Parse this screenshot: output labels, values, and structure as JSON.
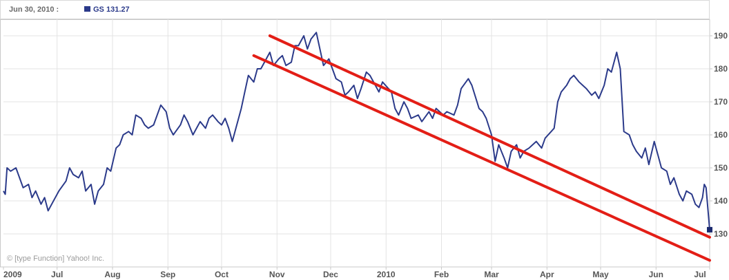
{
  "header": {
    "date_label": "Jun 30, 2010 :",
    "ticker": "GS",
    "last_value": "131.27"
  },
  "copyright": "© [type Function] Yahoo! Inc.",
  "chart_data": {
    "type": "line",
    "title": "",
    "xlabel": "",
    "ylabel": "",
    "ylim": [
      120,
      195
    ],
    "y_ticks": [
      130,
      140,
      150,
      160,
      170,
      180,
      190
    ],
    "y_axis_side": "right",
    "grid": true,
    "x_tick_labels": [
      "2009",
      "Jul",
      "Aug",
      "Sep",
      "Oct",
      "Nov",
      "Dec",
      "2010",
      "Feb",
      "Mar",
      "Apr",
      "May",
      "Jun",
      "Jul"
    ],
    "x_tick_dates": [
      "2009-06-01",
      "2009-07-01",
      "2009-08-01",
      "2009-09-01",
      "2009-10-01",
      "2009-11-01",
      "2009-12-01",
      "2010-01-01",
      "2010-02-01",
      "2010-03-01",
      "2010-04-01",
      "2010-05-01",
      "2010-06-01",
      "2010-07-01"
    ],
    "x_range": [
      "2009-06-01",
      "2010-07-01"
    ],
    "series": [
      {
        "name": "GS",
        "color": "#2b3a8a",
        "points": [
          [
            "2009-06-01",
            143
          ],
          [
            "2009-06-02",
            142
          ],
          [
            "2009-06-03",
            150
          ],
          [
            "2009-06-05",
            149
          ],
          [
            "2009-06-08",
            150
          ],
          [
            "2009-06-10",
            147
          ],
          [
            "2009-06-12",
            144
          ],
          [
            "2009-06-15",
            145
          ],
          [
            "2009-06-17",
            141
          ],
          [
            "2009-06-19",
            143
          ],
          [
            "2009-06-22",
            139
          ],
          [
            "2009-06-24",
            141
          ],
          [
            "2009-06-26",
            137
          ],
          [
            "2009-06-30",
            141
          ],
          [
            "2009-07-02",
            143
          ],
          [
            "2009-07-06",
            146
          ],
          [
            "2009-07-08",
            150
          ],
          [
            "2009-07-10",
            148
          ],
          [
            "2009-07-13",
            147
          ],
          [
            "2009-07-15",
            149
          ],
          [
            "2009-07-17",
            143
          ],
          [
            "2009-07-20",
            145
          ],
          [
            "2009-07-22",
            139
          ],
          [
            "2009-07-24",
            143
          ],
          [
            "2009-07-27",
            145
          ],
          [
            "2009-07-29",
            150
          ],
          [
            "2009-07-31",
            149
          ],
          [
            "2009-08-03",
            156
          ],
          [
            "2009-08-05",
            157
          ],
          [
            "2009-08-07",
            160
          ],
          [
            "2009-08-10",
            161
          ],
          [
            "2009-08-12",
            160
          ],
          [
            "2009-08-14",
            166
          ],
          [
            "2009-08-17",
            165
          ],
          [
            "2009-08-19",
            163
          ],
          [
            "2009-08-21",
            162
          ],
          [
            "2009-08-24",
            163
          ],
          [
            "2009-08-26",
            166
          ],
          [
            "2009-08-28",
            169
          ],
          [
            "2009-08-31",
            167
          ],
          [
            "2009-09-02",
            162
          ],
          [
            "2009-09-04",
            160
          ],
          [
            "2009-09-08",
            163
          ],
          [
            "2009-09-10",
            166
          ],
          [
            "2009-09-12",
            164
          ],
          [
            "2009-09-15",
            160
          ],
          [
            "2009-09-17",
            162
          ],
          [
            "2009-09-19",
            164
          ],
          [
            "2009-09-22",
            162
          ],
          [
            "2009-09-24",
            165
          ],
          [
            "2009-09-26",
            166
          ],
          [
            "2009-09-29",
            164
          ],
          [
            "2009-10-01",
            163
          ],
          [
            "2009-10-03",
            165
          ],
          [
            "2009-10-05",
            162
          ],
          [
            "2009-10-07",
            158
          ],
          [
            "2009-10-09",
            162
          ],
          [
            "2009-10-12",
            168
          ],
          [
            "2009-10-14",
            173
          ],
          [
            "2009-10-16",
            178
          ],
          [
            "2009-10-19",
            176
          ],
          [
            "2009-10-21",
            180
          ],
          [
            "2009-10-23",
            180
          ],
          [
            "2009-10-26",
            183
          ],
          [
            "2009-10-28",
            185
          ],
          [
            "2009-10-30",
            181
          ],
          [
            "2009-11-02",
            183
          ],
          [
            "2009-11-04",
            184
          ],
          [
            "2009-11-06",
            181
          ],
          [
            "2009-11-09",
            182
          ],
          [
            "2009-11-11",
            187
          ],
          [
            "2009-11-13",
            187
          ],
          [
            "2009-11-16",
            190
          ],
          [
            "2009-11-18",
            186
          ],
          [
            "2009-11-20",
            189
          ],
          [
            "2009-11-23",
            191
          ],
          [
            "2009-11-25",
            186
          ],
          [
            "2009-11-27",
            181
          ],
          [
            "2009-11-30",
            183
          ],
          [
            "2009-12-02",
            180
          ],
          [
            "2009-12-04",
            177
          ],
          [
            "2009-12-07",
            176
          ],
          [
            "2009-12-09",
            172
          ],
          [
            "2009-12-11",
            173
          ],
          [
            "2009-12-14",
            175
          ],
          [
            "2009-12-16",
            171
          ],
          [
            "2009-12-18",
            174
          ],
          [
            "2009-12-21",
            179
          ],
          [
            "2009-12-23",
            178
          ],
          [
            "2009-12-28",
            173
          ],
          [
            "2009-12-30",
            176
          ],
          [
            "2010-01-04",
            173
          ],
          [
            "2010-01-06",
            168
          ],
          [
            "2010-01-08",
            166
          ],
          [
            "2010-01-11",
            170
          ],
          [
            "2010-01-13",
            168
          ],
          [
            "2010-01-15",
            165
          ],
          [
            "2010-01-19",
            166
          ],
          [
            "2010-01-21",
            164
          ],
          [
            "2010-01-25",
            167
          ],
          [
            "2010-01-27",
            165
          ],
          [
            "2010-01-29",
            168
          ],
          [
            "2010-02-02",
            166
          ],
          [
            "2010-02-04",
            167
          ],
          [
            "2010-02-08",
            166
          ],
          [
            "2010-02-10",
            169
          ],
          [
            "2010-02-12",
            174
          ],
          [
            "2010-02-16",
            177
          ],
          [
            "2010-02-18",
            175
          ],
          [
            "2010-02-22",
            168
          ],
          [
            "2010-02-24",
            167
          ],
          [
            "2010-02-26",
            165
          ],
          [
            "2010-03-01",
            160
          ],
          [
            "2010-03-03",
            152
          ],
          [
            "2010-03-05",
            157
          ],
          [
            "2010-03-08",
            153
          ],
          [
            "2010-03-10",
            150
          ],
          [
            "2010-03-12",
            155
          ],
          [
            "2010-03-15",
            157
          ],
          [
            "2010-03-17",
            153
          ],
          [
            "2010-03-19",
            155
          ],
          [
            "2010-03-22",
            156
          ],
          [
            "2010-03-24",
            157
          ],
          [
            "2010-03-26",
            158
          ],
          [
            "2010-03-29",
            156
          ],
          [
            "2010-03-31",
            159
          ],
          [
            "2010-04-05",
            162
          ],
          [
            "2010-04-07",
            170
          ],
          [
            "2010-04-09",
            173
          ],
          [
            "2010-04-12",
            175
          ],
          [
            "2010-04-14",
            177
          ],
          [
            "2010-04-16",
            178
          ],
          [
            "2010-04-19",
            176
          ],
          [
            "2010-04-21",
            175
          ],
          [
            "2010-04-23",
            174
          ],
          [
            "2010-04-26",
            172
          ],
          [
            "2010-04-28",
            173
          ],
          [
            "2010-04-30",
            171
          ],
          [
            "2010-05-03",
            175
          ],
          [
            "2010-05-05",
            180
          ],
          [
            "2010-05-07",
            179
          ],
          [
            "2010-05-10",
            185
          ],
          [
            "2010-05-12",
            180
          ],
          [
            "2010-05-14",
            161
          ],
          [
            "2010-05-17",
            160
          ],
          [
            "2010-05-19",
            157
          ],
          [
            "2010-05-21",
            155
          ],
          [
            "2010-05-24",
            153
          ],
          [
            "2010-05-26",
            156
          ],
          [
            "2010-05-28",
            151
          ],
          [
            "2010-05-31",
            158
          ],
          [
            "2010-06-02",
            154
          ],
          [
            "2010-06-04",
            150
          ],
          [
            "2010-06-07",
            149
          ],
          [
            "2010-06-09",
            145
          ],
          [
            "2010-06-11",
            147
          ],
          [
            "2010-06-14",
            142
          ],
          [
            "2010-06-16",
            140
          ],
          [
            "2010-06-18",
            143
          ],
          [
            "2010-06-21",
            142
          ],
          [
            "2010-06-23",
            139
          ],
          [
            "2010-06-25",
            138
          ],
          [
            "2010-06-27",
            141
          ],
          [
            "2010-06-28",
            145
          ],
          [
            "2010-06-29",
            144
          ],
          [
            "2010-07-01",
            131.27
          ]
        ]
      }
    ],
    "trendlines": [
      {
        "name": "",
        "color": "#e31e16",
        "from": [
          "2009-10-19",
          184
        ],
        "to": [
          "2010-07-01",
          122
        ]
      },
      {
        "name": "",
        "color": "#e31e16",
        "from": [
          "2009-10-28",
          190
        ],
        "to": [
          "2010-07-01",
          129
        ]
      }
    ]
  }
}
